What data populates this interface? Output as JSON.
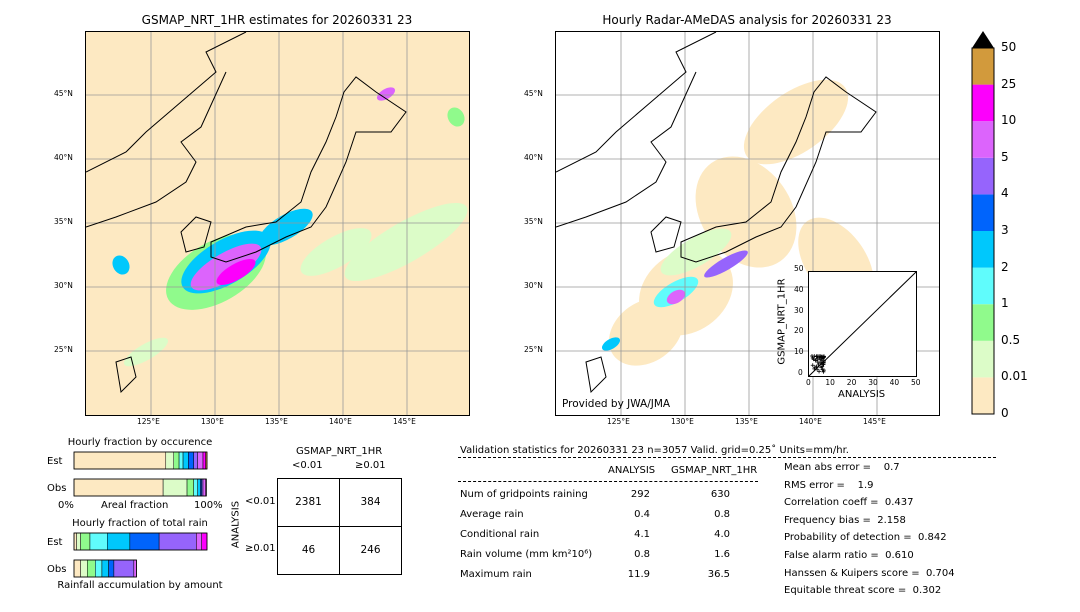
{
  "left_map": {
    "title": "GSMAP_NRT_1HR estimates for 20260331 23"
  },
  "right_map": {
    "title": "Hourly Radar-AMeDAS analysis for 20260331 23",
    "credit": "Provided by JWA/JMA"
  },
  "lon_ticks": [
    "125°E",
    "130°E",
    "135°E",
    "140°E",
    "145°E"
  ],
  "lat_ticks": [
    "45°N",
    "40°N",
    "35°N",
    "30°N",
    "25°N"
  ],
  "colorbar": {
    "levels": [
      "0",
      "0.01",
      "0.5",
      "1",
      "2",
      "3",
      "4",
      "5",
      "10",
      "25",
      "50"
    ],
    "colors": [
      "#fde9c2",
      "#dcfcc8",
      "#90fa8c",
      "#60fcfc",
      "#00c8fc",
      "#0064fc",
      "#9664fc",
      "#dc64fc",
      "#fc00fc",
      "#d29a3c"
    ],
    "extend_color": "#000000"
  },
  "inset": {
    "xlabel": "ANALYSIS",
    "ylabel": "GSMAP_NRT_1HR",
    "ticks": [
      "0",
      "10",
      "20",
      "30",
      "40",
      "50"
    ]
  },
  "occurrence": {
    "title": "Hourly fraction by occurence",
    "est_label": "Est",
    "obs_label": "Obs",
    "xmin": "0%",
    "xlabel": "Areal fraction",
    "xmax": "100%",
    "est": [
      0.69,
      0.06,
      0.04,
      0.03,
      0.04,
      0.04,
      0.03,
      0.04,
      0.02,
      0.01
    ],
    "obs": [
      0.67,
      0.18,
      0.05,
      0.03,
      0.02,
      0.01,
      0.01,
      0.02,
      0.005,
      0.0
    ]
  },
  "total_rain": {
    "title": "Hourly fraction of total rain",
    "est_label": "Est",
    "obs_label": "Obs",
    "xlabel": "Rainfall accumulation by amount",
    "est": [
      0.02,
      0.03,
      0.07,
      0.13,
      0.17,
      0.22,
      0.28,
      0.04,
      0.04
    ],
    "obs": [
      0.05,
      0.05,
      0.06,
      0.05,
      0.05,
      0.04,
      0.15,
      0.02,
      0.0
    ]
  },
  "contingency": {
    "title": "GSMAP_NRT_1HR",
    "col_labels": [
      "<0.01",
      "≥0.01"
    ],
    "row_title": "ANALYSIS",
    "row_labels": [
      "<0.01",
      "≥0.01"
    ],
    "cells": [
      [
        "2381",
        "384"
      ],
      [
        "46",
        "246"
      ]
    ]
  },
  "stats": {
    "header": "Validation statistics for 20260331 23  n=3057 Valid. grid=0.25˚ Units=mm/hr.",
    "col_analysis": "ANALYSIS",
    "col_gsmap": "GSMAP_NRT_1HR",
    "rows": [
      {
        "label": "Num of gridpoints raining",
        "a": "292",
        "g": "630"
      },
      {
        "label": "Average rain",
        "a": "0.4",
        "g": "0.8"
      },
      {
        "label": "Conditional rain",
        "a": "4.1",
        "g": "4.0"
      },
      {
        "label": "Rain volume (mm km²10⁶)",
        "a": "0.8",
        "g": "1.6"
      },
      {
        "label": "Maximum rain",
        "a": "11.9",
        "g": "36.5"
      }
    ],
    "scores": [
      "Mean abs error =    0.7",
      "RMS error =    1.9",
      "Correlation coeff =  0.437",
      "Frequency bias =  2.158",
      "Probability of detection =  0.842",
      "False alarm ratio =  0.610",
      "Hanssen & Kuipers score =  0.704",
      "Equitable threat score =  0.302"
    ]
  }
}
